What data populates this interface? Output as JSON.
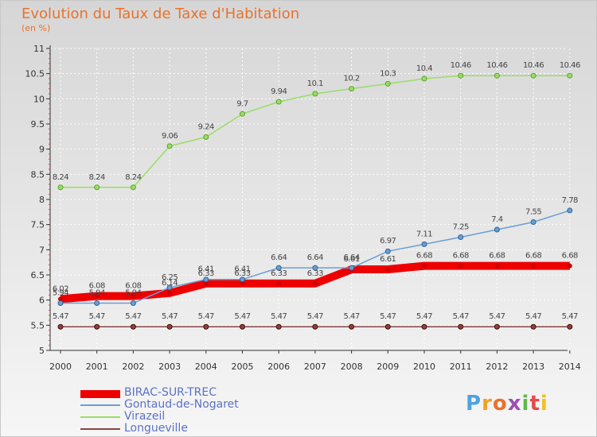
{
  "header": {
    "title": "Evolution du Taux de Taxe d'Habitation",
    "subtitle": "(en %)"
  },
  "logo": {
    "text": "Proxiti",
    "colors": [
      "#4fa3e0",
      "#f2a020",
      "#e8722d",
      "#9c4fb0",
      "#62b84a",
      "#e84a4a",
      "#f2c020"
    ]
  },
  "chart_data": {
    "type": "line",
    "x": [
      2000,
      2001,
      2002,
      2003,
      2004,
      2005,
      2006,
      2007,
      2008,
      2009,
      2010,
      2011,
      2012,
      2013,
      2014
    ],
    "ylim": [
      5,
      11
    ],
    "yticks": [
      "5",
      "5.5",
      "6",
      "6.5",
      "7",
      "7.5",
      "8",
      "8.5",
      "9",
      "9.5",
      "10",
      "10.5",
      "11"
    ],
    "grid": true,
    "legend_placement": "bottom-left",
    "series": [
      {
        "name": "BIRAC-SUR-TREC",
        "color": "#ee0000",
        "values": [
          6.02,
          6.08,
          6.08,
          6.14,
          6.33,
          6.33,
          6.33,
          6.33,
          6.61,
          6.61,
          6.68,
          6.68,
          6.68,
          6.68,
          6.68
        ],
        "labels": [
          "6.02",
          "6.08",
          "6.08",
          "6.14",
          "6.33",
          "6.33",
          "6.33",
          "6.33",
          "6.61",
          "6.61",
          "6.68",
          "6.68",
          "6.68",
          "6.68",
          "6.68"
        ]
      },
      {
        "name": "Gontaud-de-Nogaret",
        "color": "#6a9fd4",
        "values": [
          5.94,
          5.94,
          5.94,
          6.25,
          6.41,
          6.41,
          6.64,
          6.64,
          6.64,
          6.97,
          7.11,
          7.25,
          7.4,
          7.55,
          7.78
        ],
        "labels": [
          "5.94",
          "5.94",
          "5.94",
          "6.25",
          "6.41",
          "6.41",
          "6.64",
          "6.64",
          "6.64",
          "6.97",
          "7.11",
          "7.25",
          "7.4",
          "7.55",
          "7.78"
        ]
      },
      {
        "name": "Virazeil",
        "color": "#99dd66",
        "values": [
          8.24,
          8.24,
          8.24,
          9.06,
          9.24,
          9.7,
          9.94,
          10.1,
          10.2,
          10.3,
          10.4,
          10.46,
          10.46,
          10.46,
          10.46
        ],
        "labels": [
          "8.24",
          "8.24",
          "8.24",
          "9.06",
          "9.24",
          "9.7",
          "9.94",
          "10.1",
          "10.2",
          "10.3",
          "10.4",
          "10.46",
          "10.46",
          "10.46",
          "10.46"
        ]
      },
      {
        "name": "Longueville",
        "color": "#884444",
        "values": [
          5.47,
          5.47,
          5.47,
          5.47,
          5.47,
          5.47,
          5.47,
          5.47,
          5.47,
          5.47,
          5.47,
          5.47,
          5.47,
          5.47,
          5.47
        ],
        "labels": [
          "5.47",
          "5.47",
          "5.47",
          "5.47",
          "5.47",
          "5.47",
          "5.47",
          "5.47",
          "5.47",
          "5.47",
          "5.47",
          "5.47",
          "5.47",
          "5.47",
          "5.47"
        ]
      }
    ]
  }
}
